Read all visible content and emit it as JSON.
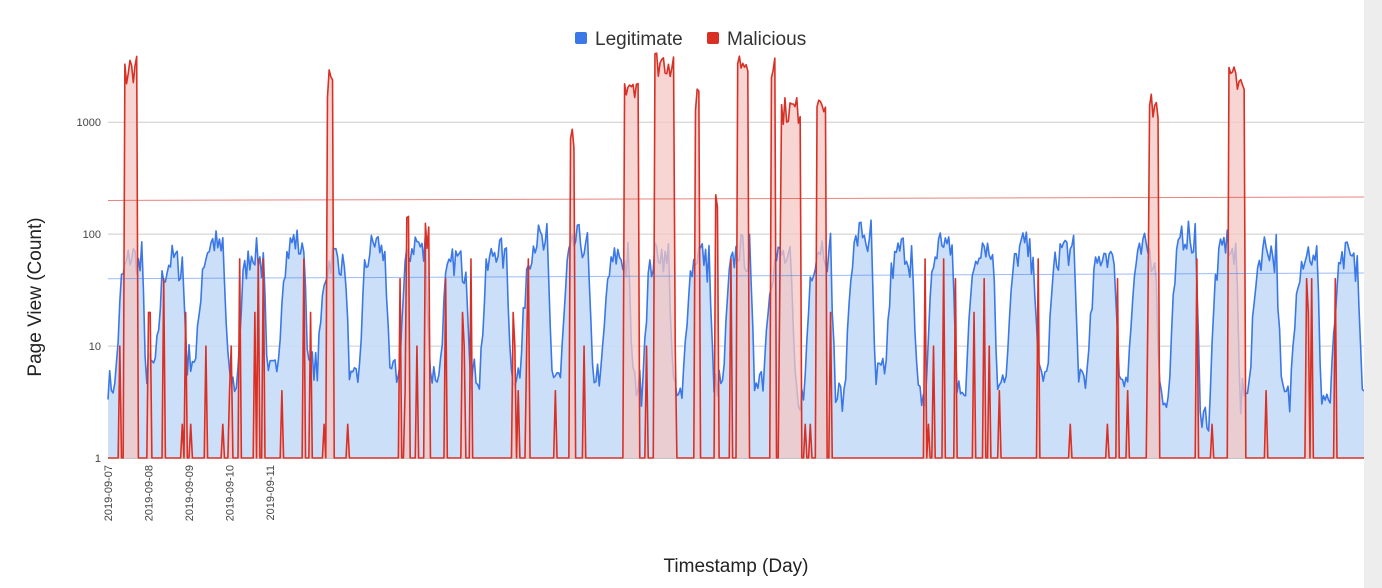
{
  "chart_data": {
    "type": "area",
    "title": "",
    "xlabel": "Timestamp (Day)",
    "ylabel": "Page View (Count)",
    "yscale": "log",
    "ylim": [
      1,
      5000
    ],
    "yticks": [
      1,
      10,
      100,
      1000
    ],
    "ytick_labels": [
      "1",
      "10",
      "100",
      "1000"
    ],
    "xtick_labels": [
      "2019-09-07",
      "2019-09-08",
      "2019-09-09",
      "2019-09-10",
      "2019-09-11"
    ],
    "x_unit": "hour",
    "x_range": [
      0,
      744
    ],
    "legend": [
      "Legitimate",
      "Malicious"
    ],
    "legend_position": "top",
    "grid": true,
    "series": [
      {
        "name": "Legitimate",
        "color": "#3b78e7",
        "fill": "#c7dbf7",
        "trend_start": 40,
        "trend_end": 45,
        "daily_peak": [
          65,
          60,
          85,
          70,
          88,
          65,
          85,
          85,
          60,
          75,
          92,
          90,
          65,
          70,
          70,
          75,
          65,
          80,
          105,
          75,
          90,
          85,
          80,
          78,
          70,
          75,
          100,
          85,
          80,
          70,
          65
        ],
        "daily_trough": [
          4,
          6,
          7,
          4,
          5,
          6,
          4,
          5,
          5,
          5,
          5,
          5,
          5,
          4,
          3,
          4,
          5,
          3,
          3,
          5,
          3,
          4,
          5,
          5,
          5,
          5,
          3,
          2,
          4,
          3,
          3
        ]
      },
      {
        "name": "Malicious",
        "color": "#d93025",
        "fill": "#f4c7c4",
        "trend_start": 200,
        "trend_end": 215,
        "bursts": [
          {
            "start": 10,
            "end": 17,
            "level": 4000
          },
          {
            "start": 130,
            "end": 133,
            "level": 3000
          },
          {
            "start": 177,
            "end": 178,
            "level": 150
          },
          {
            "start": 188,
            "end": 190,
            "level": 130
          },
          {
            "start": 274,
            "end": 276,
            "level": 1000
          },
          {
            "start": 306,
            "end": 314,
            "level": 3000
          },
          {
            "start": 324,
            "end": 335,
            "level": 4500
          },
          {
            "start": 348,
            "end": 350,
            "level": 2000
          },
          {
            "start": 360,
            "end": 361,
            "level": 280
          },
          {
            "start": 373,
            "end": 379,
            "level": 4500
          },
          {
            "start": 393,
            "end": 395,
            "level": 4500
          },
          {
            "start": 399,
            "end": 410,
            "level": 1700
          },
          {
            "start": 420,
            "end": 425,
            "level": 2200
          },
          {
            "start": 617,
            "end": 622,
            "level": 1800
          },
          {
            "start": 664,
            "end": 673,
            "level": 3200
          }
        ]
      }
    ]
  }
}
